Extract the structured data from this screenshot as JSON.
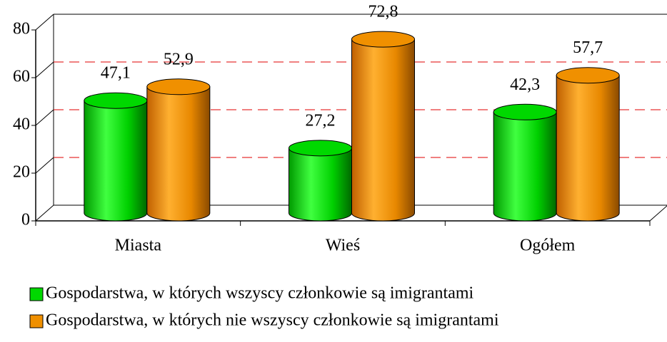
{
  "chart_data": {
    "type": "bar3d",
    "categories": [
      "Miasta",
      "Wieś",
      "Ogółem"
    ],
    "series": [
      {
        "name": "Gospodarstwa, w których wszyscy członkowie są imigrantami",
        "color": "#00d800",
        "values": [
          47.1,
          27.2,
          42.3
        ],
        "value_labels": [
          "47,1",
          "27,2",
          "42,3"
        ]
      },
      {
        "name": "Gospodarstwa, w których nie wszyscy członkowie są imigrantami",
        "color": "#f09000",
        "values": [
          52.9,
          72.8,
          57.7
        ],
        "value_labels": [
          "52,9",
          "72,8",
          "57,7"
        ]
      }
    ],
    "ylim": [
      0,
      80
    ],
    "yticks": [
      0,
      20,
      40,
      60,
      80
    ],
    "grid": true,
    "grid_color": "#e00000",
    "legend": "bottom"
  }
}
